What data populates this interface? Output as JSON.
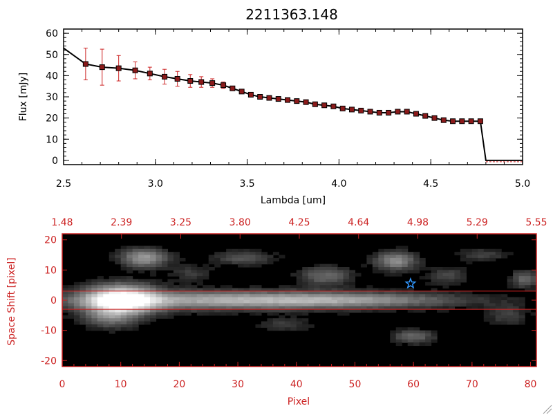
{
  "chart_data": [
    {
      "type": "line",
      "title": "2211363.148",
      "xlabel": "Lambda [um]",
      "ylabel": "Flux [mJy]",
      "xlim": [
        2.5,
        5.0
      ],
      "ylim": [
        -2,
        62
      ],
      "xticks": [
        "2.5",
        "3.0",
        "3.5",
        "4.0",
        "4.5",
        "5.0"
      ],
      "yticks": [
        "0",
        "10",
        "20",
        "30",
        "40",
        "50",
        "60"
      ],
      "series": [
        {
          "name": "flux",
          "x": [
            2.5,
            2.62,
            2.71,
            2.8,
            2.89,
            2.97,
            3.05,
            3.12,
            3.19,
            3.25,
            3.31,
            3.37,
            3.42,
            3.47,
            3.52,
            3.57,
            3.62,
            3.67,
            3.72,
            3.77,
            3.82,
            3.87,
            3.92,
            3.97,
            4.02,
            4.07,
            4.12,
            4.17,
            4.22,
            4.27,
            4.32,
            4.37,
            4.42,
            4.47,
            4.52,
            4.57,
            4.62,
            4.67,
            4.72,
            4.77,
            4.8,
            5.0
          ],
          "y": [
            53,
            45.5,
            44,
            43.5,
            42.5,
            41,
            39.5,
            38.5,
            37.5,
            37,
            36.5,
            35.5,
            34,
            32.5,
            31,
            30,
            29.5,
            29,
            28.5,
            28,
            27.5,
            26.5,
            26,
            25.5,
            24.5,
            24,
            23.5,
            23,
            22.5,
            22.5,
            23,
            23,
            22,
            21,
            20,
            19,
            18.5,
            18.5,
            18.5,
            18.5,
            0,
            0
          ],
          "err": [
            0,
            7.5,
            8.5,
            6,
            4,
            3,
            3.5,
            3.5,
            3,
            2.5,
            2,
            1.5,
            0,
            0,
            0,
            0,
            0,
            0,
            0,
            0,
            0,
            0,
            0,
            0,
            0,
            0,
            0,
            0,
            0,
            0,
            0,
            0,
            0,
            0,
            0,
            0,
            0,
            0,
            0,
            0,
            0,
            0
          ]
        }
      ]
    },
    {
      "type": "heatmap",
      "xlabel": "Pixel",
      "ylabel": "Space Shift [pixel]",
      "xlim": [
        0,
        81
      ],
      "ylim": [
        -22,
        22
      ],
      "xticks": [
        "0",
        "10",
        "20",
        "30",
        "40",
        "50",
        "60",
        "70",
        "80"
      ],
      "yticks": [
        "-20",
        "-10",
        "0",
        "10",
        "20"
      ],
      "top_axis_labels": [
        "1.48",
        "2.39",
        "3.25",
        "3.80",
        "4.25",
        "4.64",
        "4.98",
        "5.29",
        "5.55"
      ],
      "trace_limits": [
        -3,
        3
      ],
      "source_position": {
        "x": 59.5,
        "y": 5.5
      },
      "blobs": [
        {
          "x": 10,
          "y": 0,
          "sx": 4.2,
          "sy": 3.5,
          "a": 1.0
        },
        {
          "x": 25,
          "y": 0,
          "sx": 18,
          "sy": 2.2,
          "a": 0.55
        },
        {
          "x": 50,
          "y": 0,
          "sx": 14,
          "sy": 1.8,
          "a": 0.4
        },
        {
          "x": 14,
          "y": 14,
          "sx": 2.8,
          "sy": 2.2,
          "a": 0.55
        },
        {
          "x": 57,
          "y": 13,
          "sx": 2.5,
          "sy": 2.2,
          "a": 0.5
        },
        {
          "x": 45,
          "y": 8,
          "sx": 3.2,
          "sy": 2.2,
          "a": 0.35
        },
        {
          "x": 31,
          "y": 14,
          "sx": 3.5,
          "sy": 1.6,
          "a": 0.28
        },
        {
          "x": 60,
          "y": -12,
          "sx": 2.5,
          "sy": 1.6,
          "a": 0.35
        },
        {
          "x": 79,
          "y": 7,
          "sx": 1.6,
          "sy": 2,
          "a": 0.35
        },
        {
          "x": 8,
          "y": -6,
          "sx": 3,
          "sy": 2.5,
          "a": 0.3
        },
        {
          "x": 66,
          "y": 8,
          "sx": 2.5,
          "sy": 2,
          "a": 0.22
        },
        {
          "x": 72,
          "y": 15,
          "sx": 3,
          "sy": 1.5,
          "a": 0.2
        },
        {
          "x": 38,
          "y": -8,
          "sx": 3,
          "sy": 1.5,
          "a": 0.2
        },
        {
          "x": 76,
          "y": -5,
          "sx": 2.5,
          "sy": 2.5,
          "a": 0.2
        },
        {
          "x": 22,
          "y": 9,
          "sx": 2.5,
          "sy": 2,
          "a": 0.18
        }
      ]
    }
  ],
  "colors": {
    "line": "#000000",
    "marker": "#8b1a1a",
    "error": "#cc2222",
    "axis_red": "#cc2222",
    "star": "#3399ff"
  }
}
